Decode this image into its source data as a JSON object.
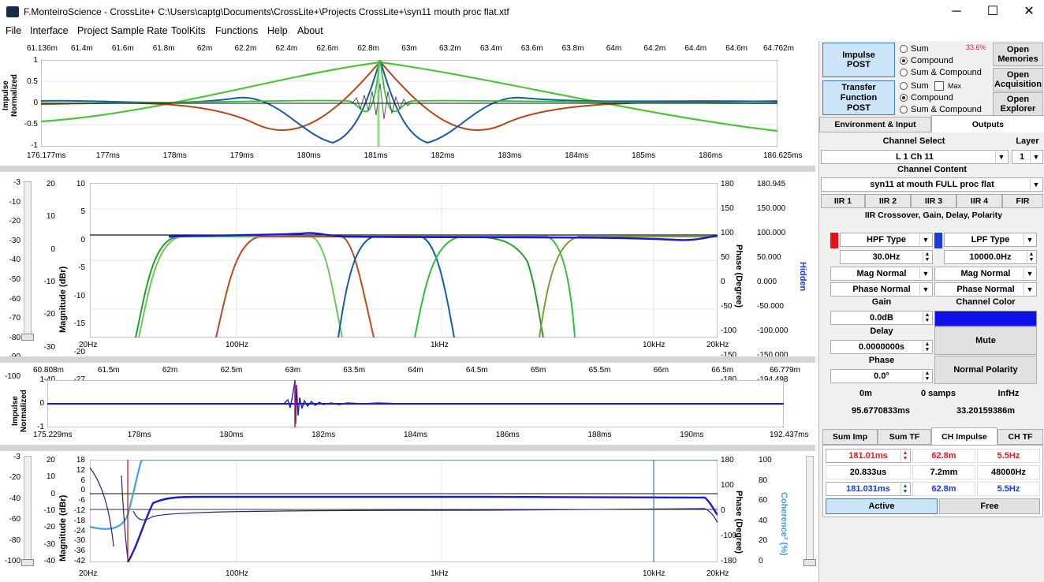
{
  "window": {
    "title": "F.MonteiroScience - CrossLite+  C:\\Users\\captg\\Documents\\CrossLite+\\Projects CrossLite+\\syn11 mouth proc flat.xtf",
    "min": "─",
    "max": "☐",
    "close": "✕"
  },
  "menu": [
    "File",
    "Interface",
    "Project Sample Rate",
    "ToolKits",
    "Functions",
    "Help",
    "About"
  ],
  "plot1": {
    "ylabel": "Impulse\nNormalized",
    "top_ticks": [
      "61.136m",
      "61.4m",
      "61.6m",
      "61.8m",
      "62m",
      "62.2m",
      "62.4m",
      "62.6m",
      "62.8m",
      "63m",
      "63.2m",
      "63.4m",
      "63.6m",
      "63.8m",
      "64m",
      "64.2m",
      "64.4m",
      "64.6m",
      "64.762m"
    ],
    "bottom_ticks": [
      "176.177ms",
      "177ms",
      "178ms",
      "179ms",
      "180ms",
      "181ms",
      "182ms",
      "183ms",
      "184ms",
      "185ms",
      "186ms",
      "186.625ms"
    ],
    "y_ticks": [
      "1",
      "0.5",
      "0",
      "-0.5",
      "-1"
    ]
  },
  "plot2": {
    "left_scale": [
      "-3",
      "-10",
      "-20",
      "-30",
      "-40",
      "-50",
      "-60",
      "-70",
      "-80",
      "-90",
      "-100"
    ],
    "mag_outer": [
      "20",
      "10",
      "0",
      "-10",
      "-20",
      "-30",
      "-40"
    ],
    "mag_inner": [
      "10",
      "5",
      "0",
      "-5",
      "-10",
      "-15",
      "-20",
      "-27"
    ],
    "ylabel": "Magnitude (dBr)",
    "phase_ticks": [
      "180",
      "150",
      "100",
      "50",
      "0",
      "-50",
      "-100",
      "-150",
      "-180"
    ],
    "phase_label": "Phase (Degree)",
    "right_scale": [
      "180.945",
      "150.000",
      "100.000",
      "50.000",
      "0.000",
      "-50.000",
      "-100.000",
      "-150.000",
      "-194.498"
    ],
    "right_label": "Hidden",
    "x_ticks": [
      "20Hz",
      "100Hz",
      "1kHz",
      "10kHz",
      "20kHz"
    ]
  },
  "plot3": {
    "ylabel": "Impulse\nNormalized",
    "top_ticks": [
      "60.808m",
      "61.5m",
      "62m",
      "62.5m",
      "63m",
      "63.5m",
      "64m",
      "64.5m",
      "65m",
      "65.5m",
      "66m",
      "66.5m",
      "66.779m"
    ],
    "bottom_ticks": [
      "175.229ms",
      "178ms",
      "180ms",
      "182ms",
      "184ms",
      "186ms",
      "188ms",
      "190ms",
      "192.437ms"
    ],
    "y_ticks": [
      "1",
      "0",
      "-1"
    ]
  },
  "plot4": {
    "left_scale": [
      "-3",
      "-20",
      "-40",
      "-60",
      "-80",
      "-100"
    ],
    "mag_outer": [
      "20",
      "10",
      "0",
      "-10",
      "-20",
      "-30",
      "-40"
    ],
    "mag_inner": [
      "18",
      "12",
      "6",
      "0",
      "-6",
      "-12",
      "-18",
      "-24",
      "-30",
      "-36",
      "-42"
    ],
    "ylabel": "Magnitude (dBr)",
    "phase_ticks": [
      "180",
      "100",
      "0",
      "-100",
      "-180"
    ],
    "phase_label": "Phase (Degree)",
    "coh_ticks": [
      "100",
      "80",
      "60",
      "40",
      "20",
      "0"
    ],
    "coh_label": "Coherence² (%)",
    "x_ticks": [
      "20Hz",
      "100Hz",
      "1kHz",
      "10kHz",
      "20kHz"
    ]
  },
  "panel": {
    "impulse_post": "Impulse\nPOST",
    "tf_post": "Transfer\nFunction\nPOST",
    "percent": "33.6%",
    "radios1": [
      "Sum",
      "Compound",
      "Sum & Compound"
    ],
    "radios2": [
      "Sum",
      "Compound",
      "Sum & Compound"
    ],
    "max_label": "Max",
    "open_memories": "Open\nMemories",
    "open_acquisition": "Open\nAcquisition",
    "open_explorer": "Open\nExplorer",
    "tabs_top": [
      "Environment & Input",
      "Outputs"
    ],
    "channel_select_label": "Channel Select",
    "layer_label": "Layer",
    "channel": "L 1 Ch 11",
    "layer": "1",
    "channel_content_label": "Channel Content",
    "channel_content": "syn11 at mouth FULL proc flat",
    "filter_tabs": [
      "IIR 1",
      "IIR 2",
      "IIR 3",
      "IIR 4",
      "FIR"
    ],
    "iir_title": "IIR Crossover, Gain, Delay, Polarity",
    "hpf_type": "HPF Type",
    "lpf_type": "LPF Type",
    "hpf_freq": "30.0Hz",
    "lpf_freq": "10000.0Hz",
    "mag_normal": "Mag Normal",
    "phase_normal": "Phase Normal",
    "gain_label": "Gain",
    "gain": "0.0dB",
    "channel_color_label": "Channel Color",
    "delay_label": "Delay",
    "delay": "0.0000000s",
    "mute": "Mute",
    "phase_label": "Phase",
    "phase": "0.0°",
    "normal_polarity": "Normal Polarity",
    "info1": [
      "0m",
      "0 samps",
      "InfHz"
    ],
    "info2": [
      "95.6770833ms",
      "33.20159386m"
    ],
    "bottom_tabs": [
      "Sum Imp",
      "Sum TF",
      "CH Impulse",
      "CH TF"
    ],
    "row1": [
      "181.01ms",
      "62.8m",
      "5.5Hz"
    ],
    "row2": [
      "20.833us",
      "7.2mm",
      "48000Hz"
    ],
    "row3": [
      "181.031ms",
      "62.8m",
      "5.5Hz"
    ],
    "active": "Active",
    "free": "Free"
  },
  "colors": {
    "accent_blue": "#1010e8",
    "hpf_red": "#e8101a",
    "lpf_blue": "#1a3ce0",
    "grid": "#d8d8d8"
  }
}
